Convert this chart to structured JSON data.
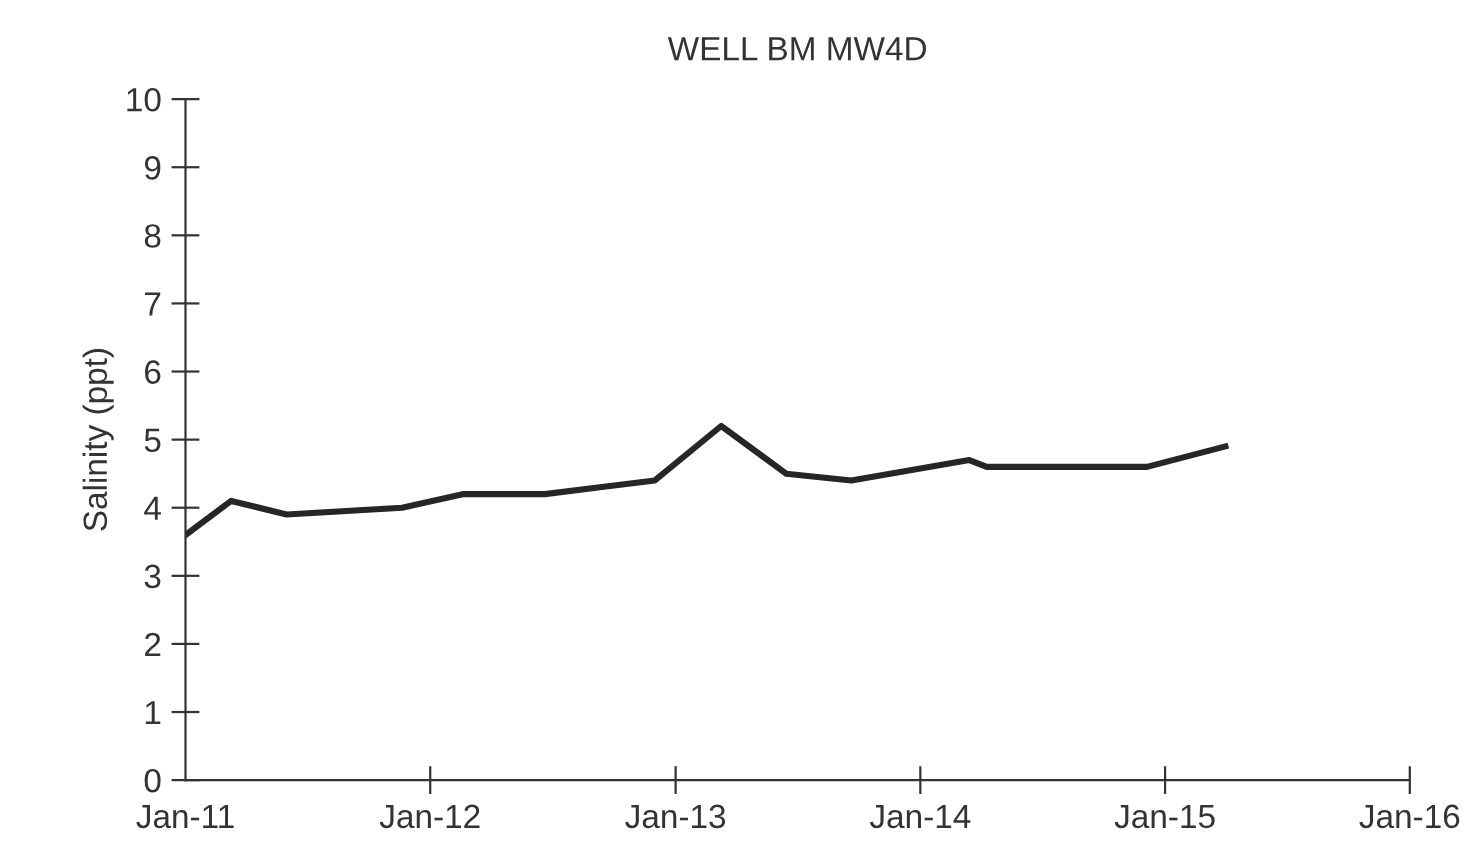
{
  "chart_data": {
    "type": "line",
    "title": "WELL BM MW4D",
    "ylabel": "Salinity (ppt)",
    "x": [
      "2011-01-01",
      "2011-03-10",
      "2011-06-01",
      "2011-11-20",
      "2012-02-20",
      "2012-06-20",
      "2012-09-10",
      "2012-12-01",
      "2013-03-10",
      "2013-06-15",
      "2013-09-20",
      "2014-03-15",
      "2014-04-10",
      "2014-12-05",
      "2015-04-01"
    ],
    "series": [
      {
        "color": "#262626",
        "values": [
          3.6,
          4.1,
          3.9,
          4.0,
          4.2,
          4.2,
          4.3,
          4.4,
          5.2,
          4.5,
          4.4,
          4.7,
          4.6,
          4.6,
          4.9
        ]
      }
    ],
    "xlim": [
      "2011-01-01",
      "2016-01-01"
    ],
    "xticks": [
      {
        "value": "2011-01-01",
        "label": "Jan-11"
      },
      {
        "value": "2012-01-01",
        "label": "Jan-12"
      },
      {
        "value": "2013-01-01",
        "label": "Jan-13"
      },
      {
        "value": "2014-01-01",
        "label": "Jan-14"
      },
      {
        "value": "2015-01-01",
        "label": "Jan-15"
      },
      {
        "value": "2016-01-01",
        "label": "Jan-16"
      }
    ],
    "ylim": [
      0,
      10
    ],
    "yticks": [
      0,
      1,
      2,
      3,
      4,
      5,
      6,
      7,
      8,
      9,
      10
    ],
    "grid": false,
    "legend": false,
    "marker": "none",
    "line_style": "solid"
  }
}
